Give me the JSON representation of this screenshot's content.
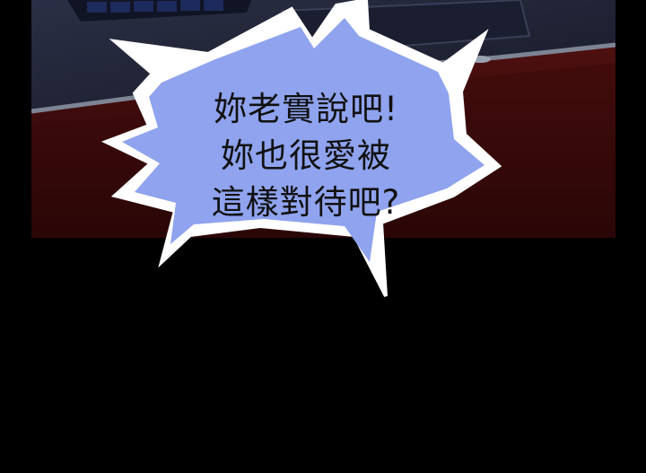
{
  "speech_bubble": {
    "lines": [
      "妳老實說吧!",
      "妳也很愛被",
      "這樣對待吧?"
    ]
  },
  "colors": {
    "background": "#000000",
    "bubble_fill": "#8fa3ee",
    "bubble_outline": "#ffffff",
    "desk": "#4a0c0d",
    "laptop": "#22263a",
    "text": "#111111"
  }
}
